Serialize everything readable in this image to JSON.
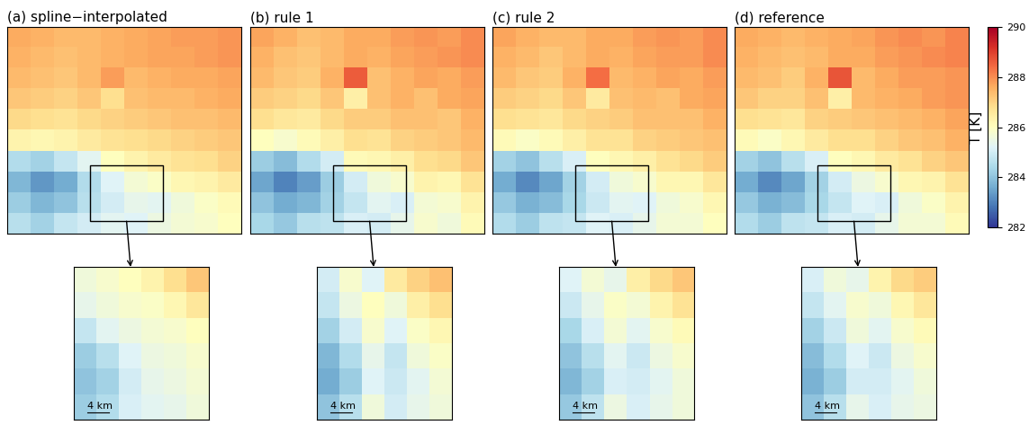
{
  "chart_data": {
    "type": "heatmap",
    "tick_labels": false,
    "colorbar_label": "T [K]",
    "colorbar_range": [
      282,
      290
    ],
    "colorbar_ticks": [
      282,
      284,
      286,
      288,
      290
    ],
    "zoom_scale_label": "4 km",
    "panels": [
      {
        "title": "(a) spline−interpolated",
        "cells": [
          [
            287.6,
            287.5,
            287.4,
            287.4,
            287.5,
            287.6,
            287.7,
            287.8,
            287.8,
            287.9
          ],
          [
            287.5,
            287.4,
            287.3,
            287.4,
            287.5,
            287.6,
            287.7,
            287.7,
            287.8,
            287.9
          ],
          [
            287.4,
            287.3,
            287.2,
            287.4,
            287.8,
            287.4,
            287.5,
            287.6,
            287.6,
            287.7
          ],
          [
            287.2,
            287.1,
            287.0,
            287.2,
            286.8,
            287.3,
            287.4,
            287.4,
            287.5,
            287.6
          ],
          [
            286.9,
            286.8,
            286.7,
            286.9,
            287.0,
            287.1,
            287.2,
            287.3,
            287.3,
            287.4
          ],
          [
            286.3,
            286.2,
            286.3,
            286.5,
            286.7,
            286.8,
            286.9,
            287.0,
            287.1,
            287.2
          ],
          [
            284.5,
            284.3,
            284.8,
            285.3,
            286.0,
            286.3,
            286.5,
            286.7,
            286.8,
            287.0
          ],
          [
            283.8,
            283.3,
            283.6,
            284.5,
            285.2,
            285.7,
            285.9,
            286.2,
            286.3,
            286.5
          ],
          [
            284.2,
            283.8,
            284.0,
            284.6,
            285.0,
            285.4,
            285.3,
            285.6,
            285.9,
            286.1
          ],
          [
            284.6,
            284.3,
            284.8,
            285.0,
            285.3,
            285.2,
            285.5,
            285.7,
            285.8,
            286.0
          ]
        ],
        "zoom_cells": [
          [
            285.6,
            285.8,
            286.0,
            286.3,
            286.8,
            287.2
          ],
          [
            285.4,
            285.6,
            285.8,
            285.9,
            286.2,
            286.6
          ],
          [
            284.8,
            285.3,
            285.5,
            285.7,
            285.8,
            286.0
          ],
          [
            284.2,
            284.6,
            285.2,
            285.5,
            285.6,
            285.8
          ],
          [
            284.0,
            284.3,
            285.0,
            285.4,
            285.5,
            285.7
          ],
          [
            284.2,
            284.5,
            285.1,
            285.3,
            285.4,
            285.6
          ]
        ]
      },
      {
        "title": "(b) rule 1",
        "cells": [
          [
            287.7,
            287.5,
            287.3,
            287.4,
            287.6,
            287.6,
            287.8,
            287.9,
            287.8,
            288.0
          ],
          [
            287.5,
            287.3,
            287.2,
            287.4,
            287.6,
            287.5,
            287.7,
            287.8,
            287.9,
            288.0
          ],
          [
            287.4,
            287.2,
            287.1,
            287.5,
            288.6,
            287.3,
            287.5,
            287.7,
            287.6,
            287.8
          ],
          [
            287.1,
            287.0,
            286.9,
            287.2,
            286.4,
            287.3,
            287.5,
            287.3,
            287.6,
            287.7
          ],
          [
            286.8,
            286.6,
            286.5,
            286.9,
            287.1,
            287.1,
            287.3,
            287.3,
            287.2,
            287.5
          ],
          [
            286.0,
            285.8,
            286.1,
            286.4,
            286.8,
            286.7,
            287.0,
            287.1,
            287.2,
            287.4
          ],
          [
            284.2,
            283.9,
            284.5,
            285.0,
            286.1,
            286.2,
            286.4,
            286.8,
            286.9,
            287.2
          ],
          [
            283.5,
            283.0,
            283.4,
            284.2,
            285.0,
            285.6,
            285.8,
            286.3,
            286.2,
            286.7
          ],
          [
            284.0,
            283.6,
            283.8,
            284.3,
            284.8,
            285.3,
            285.1,
            285.7,
            285.8,
            286.3
          ],
          [
            284.4,
            284.1,
            284.6,
            284.7,
            285.1,
            285.0,
            285.4,
            285.8,
            285.6,
            286.1
          ]
        ],
        "zoom_cells": [
          [
            285.0,
            285.8,
            285.2,
            286.5,
            287.0,
            287.3
          ],
          [
            284.8,
            285.5,
            286.0,
            285.6,
            286.4,
            286.8
          ],
          [
            284.3,
            285.0,
            285.8,
            285.2,
            285.9,
            286.2
          ],
          [
            283.8,
            284.5,
            285.4,
            284.8,
            285.6,
            285.9
          ],
          [
            283.6,
            284.2,
            285.2,
            284.9,
            285.3,
            285.7
          ],
          [
            284.0,
            284.6,
            285.6,
            285.0,
            285.4,
            285.6
          ]
        ]
      },
      {
        "title": "(c) rule 2",
        "cells": [
          [
            287.7,
            287.5,
            287.4,
            287.4,
            287.6,
            287.6,
            287.8,
            287.9,
            287.8,
            288.0
          ],
          [
            287.5,
            287.4,
            287.2,
            287.4,
            287.6,
            287.5,
            287.7,
            287.8,
            287.8,
            288.0
          ],
          [
            287.4,
            287.2,
            287.1,
            287.5,
            288.4,
            287.4,
            287.5,
            287.7,
            287.6,
            287.8
          ],
          [
            287.1,
            287.0,
            286.9,
            287.2,
            286.5,
            287.3,
            287.4,
            287.3,
            287.6,
            287.7
          ],
          [
            286.8,
            286.7,
            286.6,
            286.9,
            287.0,
            287.1,
            287.3,
            287.3,
            287.3,
            287.5
          ],
          [
            286.1,
            285.9,
            286.1,
            286.4,
            286.7,
            286.7,
            287.0,
            287.1,
            287.2,
            287.3
          ],
          [
            284.3,
            284.0,
            284.6,
            285.1,
            286.0,
            286.2,
            286.4,
            286.7,
            286.9,
            287.1
          ],
          [
            283.6,
            283.1,
            283.5,
            284.3,
            285.0,
            285.6,
            285.8,
            286.2,
            286.2,
            286.6
          ],
          [
            284.1,
            283.7,
            283.9,
            284.4,
            284.9,
            285.3,
            285.2,
            285.6,
            285.8,
            286.2
          ],
          [
            284.5,
            284.2,
            284.7,
            284.8,
            285.2,
            285.1,
            285.4,
            285.7,
            285.7,
            286.0
          ]
        ],
        "zoom_cells": [
          [
            285.2,
            285.7,
            285.4,
            286.4,
            286.9,
            287.2
          ],
          [
            284.9,
            285.4,
            285.9,
            285.7,
            286.3,
            286.7
          ],
          [
            284.4,
            285.1,
            285.7,
            285.3,
            285.8,
            286.1
          ],
          [
            284.0,
            284.6,
            285.3,
            284.9,
            285.5,
            285.8
          ],
          [
            283.8,
            284.3,
            285.1,
            285.0,
            285.3,
            285.6
          ],
          [
            284.1,
            284.7,
            285.5,
            285.1,
            285.4,
            285.6
          ]
        ]
      },
      {
        "title": "(d) reference",
        "cells": [
          [
            287.6,
            287.5,
            287.4,
            287.5,
            287.6,
            287.7,
            287.9,
            288.0,
            287.9,
            288.1
          ],
          [
            287.5,
            287.4,
            287.3,
            287.4,
            287.6,
            287.6,
            287.8,
            287.9,
            288.0,
            288.1
          ],
          [
            287.4,
            287.3,
            287.1,
            287.5,
            288.7,
            287.4,
            287.6,
            287.8,
            287.8,
            287.9
          ],
          [
            287.2,
            287.0,
            287.0,
            287.3,
            286.4,
            287.4,
            287.5,
            287.6,
            287.8,
            287.9
          ],
          [
            286.8,
            286.7,
            286.6,
            287.0,
            287.1,
            287.2,
            287.3,
            287.4,
            287.5,
            287.7
          ],
          [
            286.1,
            285.9,
            286.2,
            286.5,
            286.8,
            286.8,
            287.0,
            287.2,
            287.3,
            287.5
          ],
          [
            284.3,
            284.0,
            284.6,
            285.1,
            286.0,
            286.2,
            286.5,
            286.7,
            287.0,
            287.2
          ],
          [
            283.6,
            283.1,
            283.5,
            284.3,
            285.0,
            285.5,
            285.8,
            286.2,
            286.3,
            286.7
          ],
          [
            284.1,
            283.7,
            283.9,
            284.4,
            284.8,
            285.2,
            285.1,
            285.6,
            285.9,
            286.3
          ],
          [
            284.5,
            284.2,
            284.7,
            284.8,
            285.1,
            285.0,
            285.4,
            285.7,
            285.7,
            286.1
          ]
        ],
        "zoom_cells": [
          [
            285.1,
            285.6,
            285.4,
            286.3,
            286.9,
            287.1
          ],
          [
            284.8,
            285.3,
            285.8,
            285.6,
            286.2,
            286.6
          ],
          [
            284.3,
            284.9,
            285.6,
            285.3,
            285.8,
            286.1
          ],
          [
            283.9,
            284.5,
            285.2,
            284.9,
            285.5,
            285.8
          ],
          [
            283.7,
            284.2,
            285.0,
            285.0,
            285.3,
            285.6
          ],
          [
            284.0,
            284.6,
            285.4,
            285.1,
            285.4,
            285.5
          ]
        ]
      }
    ]
  }
}
